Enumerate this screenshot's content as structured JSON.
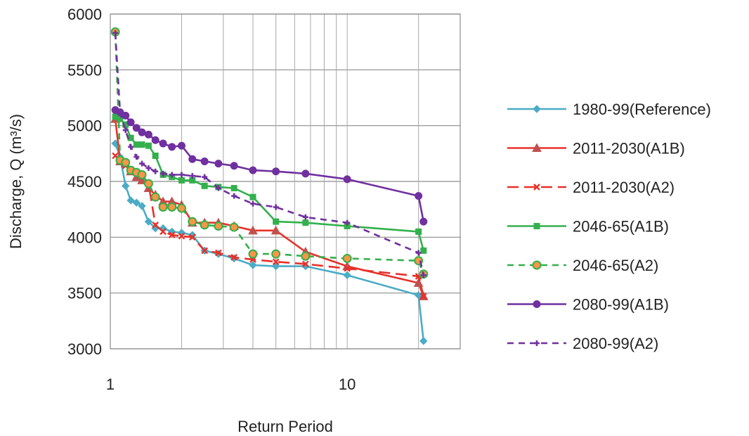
{
  "chart_data": {
    "type": "line",
    "xlabel": "Return Period",
    "ylabel": "Discharge, Q (m³/s)",
    "x_scale": "log",
    "xlim": [
      1,
      30
    ],
    "ylim": [
      3000,
      6000
    ],
    "y_ticks": [
      3000,
      3500,
      4000,
      4500,
      5000,
      5500,
      6000
    ],
    "x_ticks": [
      1,
      10
    ],
    "x_tick_labels": [
      "1",
      "10"
    ],
    "grid": true,
    "legend_position": "right",
    "series": [
      {
        "name": "1980-99(Reference)",
        "color": "#4BACC6",
        "dash": "solid",
        "marker": "diamond",
        "points": [
          [
            1.05,
            4840
          ],
          [
            1.1,
            4720
          ],
          [
            1.16,
            4460
          ],
          [
            1.22,
            4330
          ],
          [
            1.29,
            4310
          ],
          [
            1.36,
            4280
          ],
          [
            1.45,
            4140
          ],
          [
            1.55,
            4080
          ],
          [
            1.67,
            4080
          ],
          [
            1.82,
            4050
          ],
          [
            2.0,
            4040
          ],
          [
            2.22,
            4020
          ],
          [
            2.5,
            3880
          ],
          [
            2.86,
            3850
          ],
          [
            3.33,
            3810
          ],
          [
            4.0,
            3750
          ],
          [
            5.0,
            3740
          ],
          [
            6.67,
            3740
          ],
          [
            10.0,
            3660
          ],
          [
            20.0,
            3480
          ],
          [
            21.0,
            3070
          ]
        ]
      },
      {
        "name": "2011-2030(A1B)",
        "color": "#E8312A",
        "dash": "solid",
        "marker": "triangle",
        "points": [
          [
            1.05,
            5060
          ],
          [
            1.1,
            4680
          ],
          [
            1.16,
            4660
          ],
          [
            1.22,
            4590
          ],
          [
            1.29,
            4540
          ],
          [
            1.36,
            4510
          ],
          [
            1.45,
            4440
          ],
          [
            1.55,
            4380
          ],
          [
            1.67,
            4320
          ],
          [
            1.82,
            4320
          ],
          [
            2.0,
            4290
          ],
          [
            2.22,
            4130
          ],
          [
            2.5,
            4130
          ],
          [
            2.86,
            4130
          ],
          [
            3.33,
            4100
          ],
          [
            4.0,
            4060
          ],
          [
            5.0,
            4060
          ],
          [
            6.67,
            3870
          ],
          [
            10.0,
            3740
          ],
          [
            20.0,
            3590
          ],
          [
            21.0,
            3470
          ]
        ]
      },
      {
        "name": "2011-2030(A2)",
        "color": "#E8312A",
        "dash": "long",
        "marker": "cross",
        "points": [
          [
            1.05,
            4730
          ],
          [
            1.1,
            4680
          ],
          [
            1.16,
            4640
          ],
          [
            1.22,
            4600
          ],
          [
            1.29,
            4580
          ],
          [
            1.36,
            4560
          ],
          [
            1.45,
            4480
          ],
          [
            1.55,
            4110
          ],
          [
            1.67,
            4050
          ],
          [
            1.82,
            4020
          ],
          [
            2.0,
            4010
          ],
          [
            2.22,
            4000
          ],
          [
            2.5,
            3880
          ],
          [
            2.86,
            3860
          ],
          [
            3.33,
            3820
          ],
          [
            4.0,
            3800
          ],
          [
            5.0,
            3780
          ],
          [
            6.67,
            3760
          ],
          [
            10.0,
            3720
          ],
          [
            20.0,
            3650
          ],
          [
            21.0,
            3470
          ]
        ]
      },
      {
        "name": "2046-65(A1B)",
        "color": "#33B04C",
        "dash": "solid",
        "marker": "square",
        "points": [
          [
            1.05,
            5080
          ],
          [
            1.1,
            5060
          ],
          [
            1.16,
            5010
          ],
          [
            1.22,
            4890
          ],
          [
            1.29,
            4830
          ],
          [
            1.36,
            4830
          ],
          [
            1.45,
            4820
          ],
          [
            1.55,
            4730
          ],
          [
            1.67,
            4560
          ],
          [
            1.82,
            4540
          ],
          [
            2.0,
            4510
          ],
          [
            2.22,
            4510
          ],
          [
            2.5,
            4460
          ],
          [
            2.86,
            4450
          ],
          [
            3.33,
            4440
          ],
          [
            4.0,
            4360
          ],
          [
            5.0,
            4140
          ],
          [
            6.67,
            4130
          ],
          [
            10.0,
            4100
          ],
          [
            20.0,
            4050
          ],
          [
            21.0,
            3880
          ]
        ]
      },
      {
        "name": "2046-65(A2)",
        "color": "#33B04C",
        "dash": "dash",
        "marker": "circle-orange",
        "points": [
          [
            1.05,
            5840
          ],
          [
            1.1,
            4690
          ],
          [
            1.16,
            4670
          ],
          [
            1.22,
            4600
          ],
          [
            1.29,
            4580
          ],
          [
            1.36,
            4560
          ],
          [
            1.45,
            4480
          ],
          [
            1.55,
            4360
          ],
          [
            1.67,
            4270
          ],
          [
            1.82,
            4270
          ],
          [
            2.0,
            4260
          ],
          [
            2.22,
            4140
          ],
          [
            2.5,
            4110
          ],
          [
            2.86,
            4100
          ],
          [
            3.33,
            4090
          ],
          [
            4.0,
            3850
          ],
          [
            5.0,
            3850
          ],
          [
            6.67,
            3830
          ],
          [
            10.0,
            3810
          ],
          [
            20.0,
            3790
          ],
          [
            21.0,
            3670
          ]
        ]
      },
      {
        "name": "2080-99(A1B)",
        "color": "#7030A0",
        "dash": "solid",
        "marker": "circle",
        "points": [
          [
            1.05,
            5140
          ],
          [
            1.1,
            5120
          ],
          [
            1.16,
            5090
          ],
          [
            1.22,
            5030
          ],
          [
            1.29,
            4980
          ],
          [
            1.36,
            4940
          ],
          [
            1.45,
            4920
          ],
          [
            1.55,
            4870
          ],
          [
            1.67,
            4840
          ],
          [
            1.82,
            4810
          ],
          [
            2.0,
            4820
          ],
          [
            2.22,
            4700
          ],
          [
            2.5,
            4680
          ],
          [
            2.86,
            4660
          ],
          [
            3.33,
            4640
          ],
          [
            4.0,
            4600
          ],
          [
            5.0,
            4590
          ],
          [
            6.67,
            4570
          ],
          [
            10.0,
            4520
          ],
          [
            20.0,
            4370
          ],
          [
            21.0,
            4140
          ]
        ]
      },
      {
        "name": "2080-99(A2)",
        "color": "#7030A0",
        "dash": "dash",
        "marker": "plus",
        "points": [
          [
            1.05,
            5830
          ],
          [
            1.1,
            5110
          ],
          [
            1.16,
            4960
          ],
          [
            1.22,
            4810
          ],
          [
            1.29,
            4720
          ],
          [
            1.36,
            4660
          ],
          [
            1.45,
            4620
          ],
          [
            1.55,
            4590
          ],
          [
            1.67,
            4570
          ],
          [
            1.82,
            4560
          ],
          [
            2.0,
            4560
          ],
          [
            2.22,
            4550
          ],
          [
            2.5,
            4540
          ],
          [
            2.86,
            4440
          ],
          [
            3.33,
            4370
          ],
          [
            4.0,
            4300
          ],
          [
            5.0,
            4270
          ],
          [
            6.67,
            4180
          ],
          [
            10.0,
            4130
          ],
          [
            20.0,
            3860
          ],
          [
            21.0,
            3660
          ]
        ]
      }
    ]
  }
}
